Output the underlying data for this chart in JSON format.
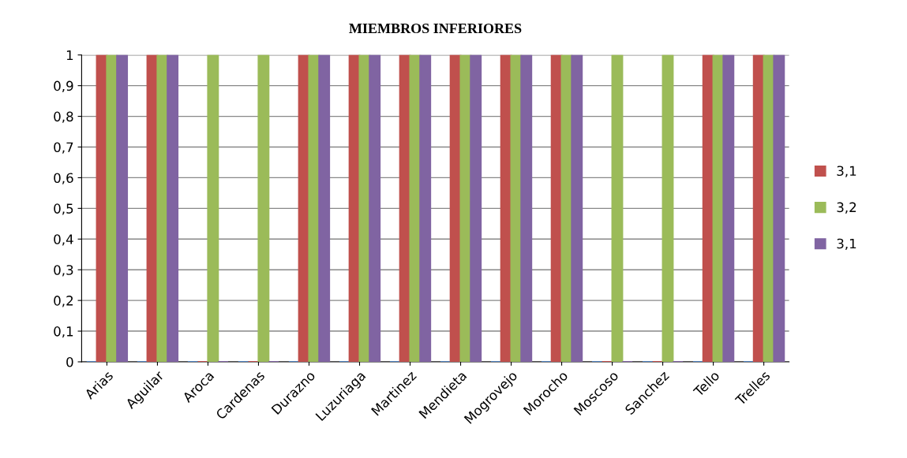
{
  "chart_data": {
    "type": "bar",
    "title": "MIEMBROS INFERIORES",
    "categories": [
      "Arias",
      "Aguilar",
      "Aroca",
      "Cardenas",
      "Durazno",
      "Luzuriaga",
      "Martinez",
      "Mendieta",
      "Mogrovejo",
      "Morocho",
      "Moscoso",
      "Sanchez",
      "Tello",
      "Trelles"
    ],
    "series": [
      {
        "color": "#4f81bd",
        "values": [
          0,
          0,
          0,
          0,
          0,
          0,
          0,
          0,
          0,
          0,
          0,
          0,
          0,
          0
        ]
      },
      {
        "name": "3,1",
        "color": "#c0504d",
        "values": [
          1,
          1,
          0,
          0,
          1,
          1,
          1,
          1,
          1,
          1,
          0,
          0,
          1,
          1
        ]
      },
      {
        "name": "3,2",
        "color": "#9bbb59",
        "values": [
          1,
          1,
          1,
          1,
          1,
          1,
          1,
          1,
          1,
          1,
          1,
          1,
          1,
          1
        ]
      },
      {
        "name": "3,1",
        "color": "#8064a2",
        "values": [
          1,
          1,
          0,
          0,
          1,
          1,
          1,
          1,
          1,
          1,
          0,
          0,
          1,
          1
        ]
      }
    ],
    "ylim": [
      0,
      1
    ],
    "yticks": [
      0,
      {
        "value": 0.1,
        "label": "0,1"
      },
      {
        "value": 0.2,
        "label": "0,2"
      },
      {
        "value": 0.3,
        "label": "0,3"
      },
      {
        "value": 0.4,
        "label": "0,4"
      },
      {
        "value": 0.5,
        "label": "0,5"
      },
      {
        "value": 0.6,
        "label": "0,6"
      },
      {
        "value": 0.7,
        "label": "0,7"
      },
      {
        "value": 0.8,
        "label": "0,8"
      },
      {
        "value": 0.9,
        "label": "0,9"
      },
      1
    ],
    "grid": "y",
    "legend": "right"
  }
}
